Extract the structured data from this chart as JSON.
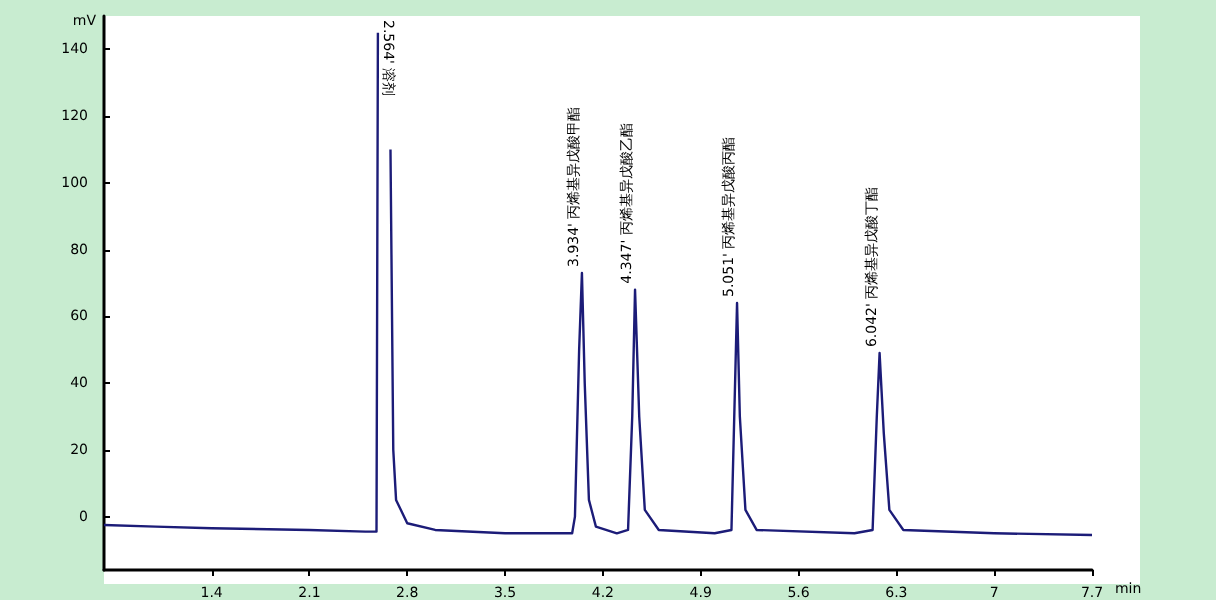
{
  "chart_data": {
    "type": "line",
    "xlabel": "min",
    "ylabel": "mV",
    "xlim": [
      0.63,
      7.7
    ],
    "xticks": [
      1.4,
      2.1,
      2.8,
      3.5,
      4.2,
      4.9,
      5.6,
      6.3,
      7,
      7.7
    ],
    "ylim": [
      -16,
      150
    ],
    "yticks": [
      0,
      20,
      40,
      60,
      80,
      100,
      120,
      140
    ],
    "grid": false,
    "marker": "none",
    "line_style": "solid",
    "series": [
      {
        "color": "#1c1c78",
        "x": [
          0.63,
          1.0,
          1.4,
          2.1,
          2.5,
          2.58,
          2.59,
          2.6,
          2.67,
          2.68,
          2.7,
          2.72,
          2.8,
          3.0,
          3.5,
          3.98,
          4.0,
          4.03,
          4.05,
          4.07,
          4.1,
          4.15,
          4.3,
          4.38,
          4.41,
          4.43,
          4.46,
          4.5,
          4.6,
          5.0,
          5.12,
          5.14,
          5.16,
          5.18,
          5.22,
          5.3,
          6.0,
          6.13,
          6.16,
          6.18,
          6.21,
          6.25,
          6.35,
          7.0,
          7.7
        ],
        "values": [
          -2.5,
          -3,
          -3.5,
          -4,
          -4.5,
          -4.5,
          145,
          null,
          null,
          110,
          20,
          5,
          -2,
          -4,
          -5,
          -5,
          0,
          50,
          73,
          40,
          5,
          -3,
          -5,
          -4,
          30,
          68,
          30,
          2,
          -4,
          -5,
          -4,
          30,
          64,
          30,
          2,
          -4,
          -5,
          -4,
          30,
          49,
          25,
          2,
          -4,
          -5,
          -5.5
        ]
      }
    ],
    "annotations": [
      "2.564' 溶剂",
      {
        "text": "3.934' 丙烯基异戊酸甲酯",
        "x": 4.05,
        "y": 73
      },
      {
        "text": "4.347' 丙烯基异戊酸乙酯",
        "x": 4.43,
        "y": 68
      },
      {
        "text": "5.051' 丙烯基异戊酸丙酯",
        "x": 5.16,
        "y": 64
      },
      {
        "text": "6.042' 丙烯基异戊酸丁酯",
        "x": 6.18,
        "y": 49
      }
    ]
  }
}
